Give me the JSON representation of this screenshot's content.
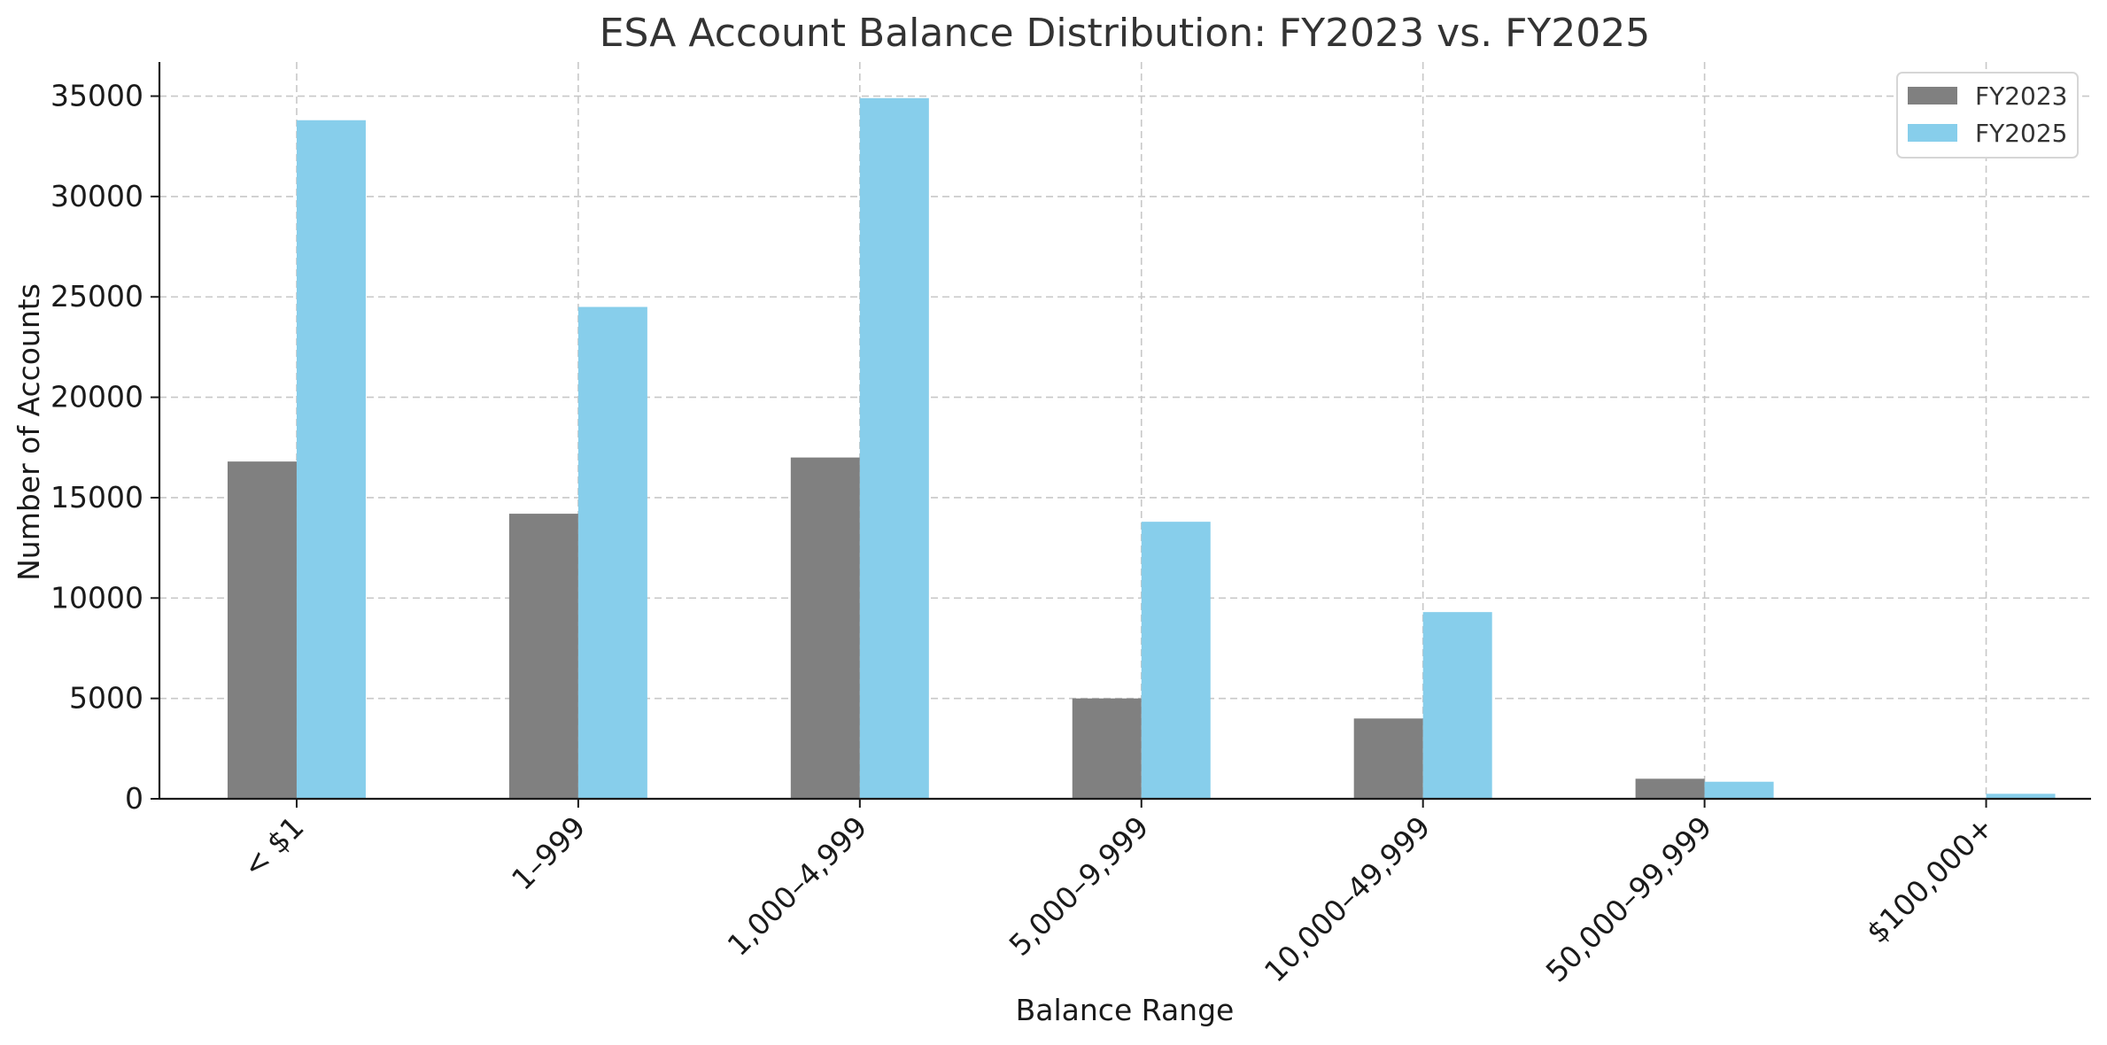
{
  "chart_data": {
    "type": "bar",
    "title": "ESA Account Balance Distribution: FY2023 vs. FY2025",
    "xlabel": "Balance Range",
    "ylabel": "Number of Accounts",
    "categories": [
      "< $1",
      "1–999",
      "1,000–4,999",
      "5,000–9,999",
      "10,000–49,999",
      "50,000–99,999",
      "$100,000+"
    ],
    "series": [
      {
        "name": "FY2023",
        "color": "#808080",
        "values": [
          16800,
          14200,
          17000,
          5000,
          4000,
          1000,
          0
        ]
      },
      {
        "name": "FY2025",
        "color": "#87ceeb",
        "values": [
          33800,
          24500,
          34900,
          13800,
          9300,
          850,
          250
        ]
      }
    ],
    "ylim": [
      0,
      36700
    ],
    "yticks": [
      0,
      5000,
      10000,
      15000,
      20000,
      25000,
      30000,
      35000
    ],
    "grid": true,
    "legend_position": "top-right"
  }
}
